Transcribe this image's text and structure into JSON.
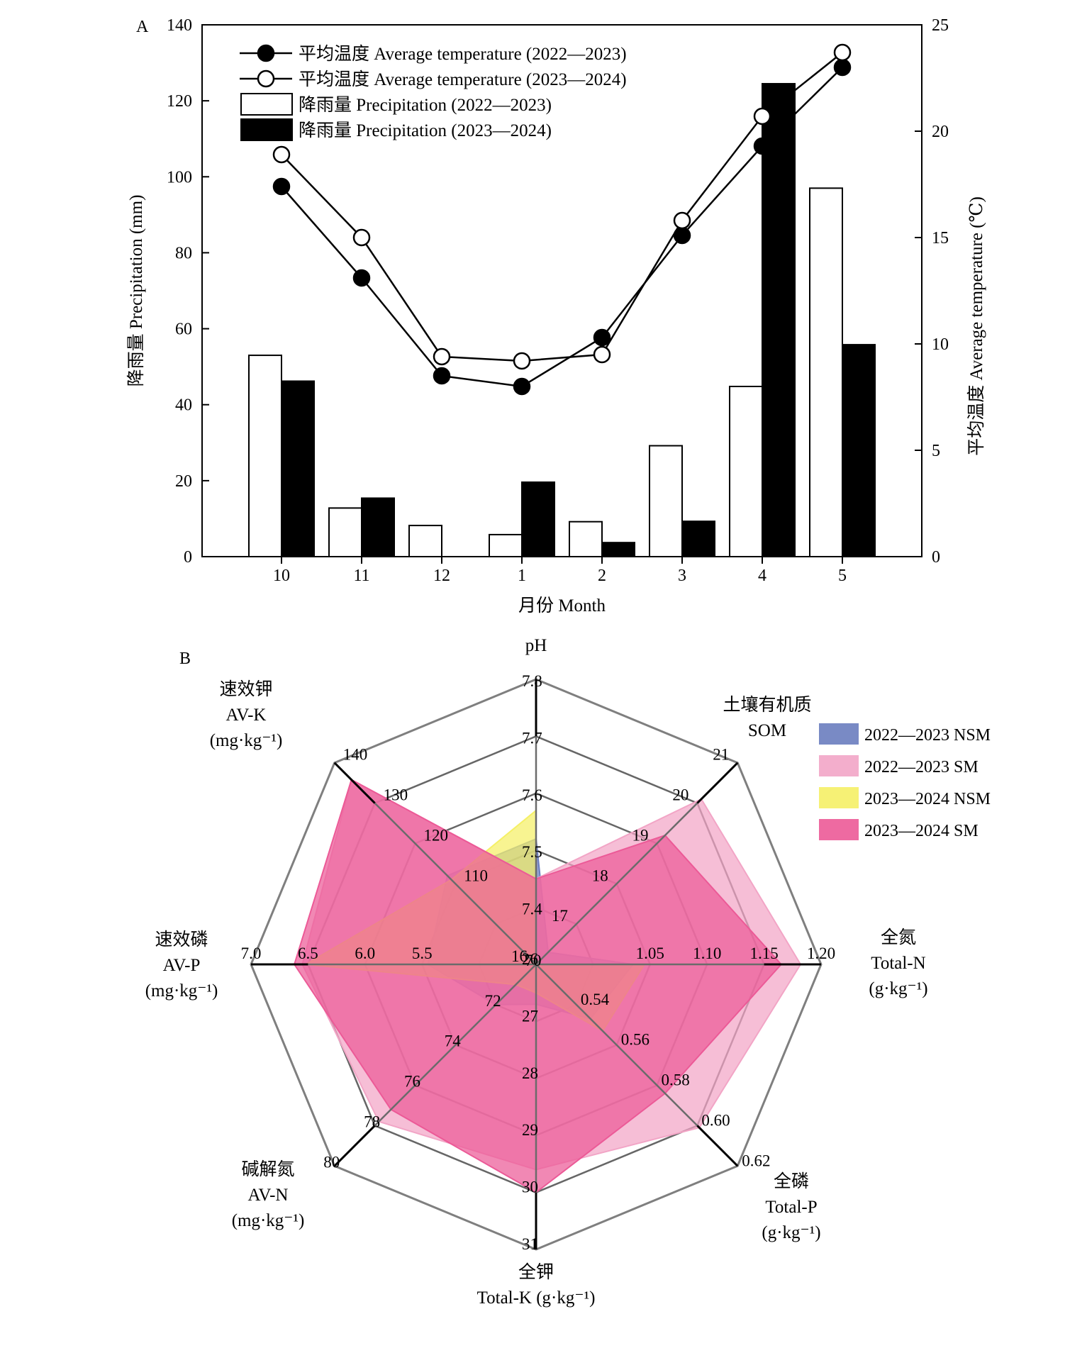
{
  "chart_data": [
    {
      "panel": "A",
      "type": "bar",
      "x_label": "月份 Month",
      "y_label_left": "降雨量 Precipitation (mm)",
      "y_label_right": "平均温度 Average temperature (℃)",
      "categories": [
        "10",
        "11",
        "12",
        "1",
        "2",
        "3",
        "4",
        "5"
      ],
      "y_left_ticks": [
        "0",
        "20",
        "40",
        "60",
        "80",
        "100",
        "120",
        "140"
      ],
      "y_right_ticks": [
        "0",
        "5",
        "10",
        "15",
        "20",
        "25"
      ],
      "ylim_left": [
        0,
        140
      ],
      "ylim_right": [
        0,
        25
      ],
      "legend_position": "top-left",
      "series": [
        {
          "name": "降雨量 Precipitation (2022—2023)",
          "kind": "bar",
          "fill": "#ffffff",
          "values": [
            53,
            12.8,
            8.2,
            5.8,
            9.2,
            29.2,
            44.8,
            97
          ]
        },
        {
          "name": "降雨量 Precipitation (2023—2024)",
          "kind": "bar",
          "fill": "#000000",
          "values": [
            46.2,
            15.4,
            0,
            19.6,
            3.7,
            9.3,
            124.5,
            55.8
          ]
        },
        {
          "name": "平均温度 Average temperature (2022—2023)",
          "kind": "line",
          "marker": "filled",
          "axis": "right",
          "values": [
            17.4,
            13.1,
            8.5,
            8.0,
            10.3,
            15.1,
            19.3,
            23.0
          ]
        },
        {
          "name": "平均温度 Average temperature (2023—2024)",
          "kind": "line",
          "marker": "open",
          "axis": "right",
          "values": [
            18.9,
            15.0,
            9.4,
            9.2,
            9.5,
            15.8,
            20.7,
            23.7
          ]
        }
      ]
    },
    {
      "panel": "B",
      "type": "radar",
      "axes": [
        {
          "label": [
            "pH"
          ],
          "ticks": [
            "7.4",
            "7.5",
            "7.6",
            "7.7",
            "7.8"
          ]
        },
        {
          "label": [
            "土壤有机质",
            "SOM"
          ],
          "ticks": [
            "16",
            "17",
            "18",
            "19",
            "20",
            "21"
          ]
        },
        {
          "label": [
            "全氮",
            "Total-N",
            "(g·kg⁻¹)"
          ],
          "ticks": [
            "1.05",
            "1.10",
            "1.15",
            "1.20"
          ]
        },
        {
          "label": [
            "全磷",
            "Total-P",
            "(g·kg⁻¹)"
          ],
          "ticks": [
            "0.54",
            "0.56",
            "0.58",
            "0.60",
            "0.62"
          ]
        },
        {
          "label": [
            "全钾",
            "Total-K (g·kg⁻¹)"
          ],
          "ticks": [
            "26",
            "27",
            "28",
            "29",
            "30",
            "31"
          ]
        },
        {
          "label": [
            "碱解氮",
            "AV-N",
            "(mg·kg⁻¹)"
          ],
          "ticks": [
            "70",
            "72",
            "74",
            "76",
            "78",
            "80"
          ]
        },
        {
          "label": [
            "速效磷",
            "AV-P",
            "(mg·kg⁻¹)"
          ],
          "ticks": [
            "5.5",
            "6.0",
            "6.5",
            "7.0"
          ]
        },
        {
          "label": [
            "速效钾",
            "AV-K",
            "(mg·kg⁻¹)"
          ],
          "ticks": [
            "110",
            "120",
            "130",
            "140"
          ]
        }
      ],
      "series": [
        {
          "name": "2022—2023  NSM",
          "color": "#6a7dbf",
          "values": [
            7.52,
            16.3,
            1.035,
            0.547,
            26.7,
            72.0,
            5.45,
            112.0
          ]
        },
        {
          "name": "2022—2023  SM",
          "color": "#f2a5c6",
          "values": [
            7.45,
            20.1,
            1.182,
            0.601,
            29.6,
            77.8,
            6.55,
            135.8
          ]
        },
        {
          "name": "2023—2024  NSM",
          "color": "#f5f066",
          "values": [
            7.57,
            15.4,
            1.045,
            0.553,
            26.5,
            71.0,
            6.52,
            111.0
          ]
        },
        {
          "name": "2023—2024  SM",
          "color": "#ec5a97",
          "values": [
            7.45,
            19.2,
            1.165,
            0.584,
            30.0,
            77.2,
            6.62,
            135.8
          ]
        }
      ],
      "legend_position": "top-right"
    }
  ]
}
